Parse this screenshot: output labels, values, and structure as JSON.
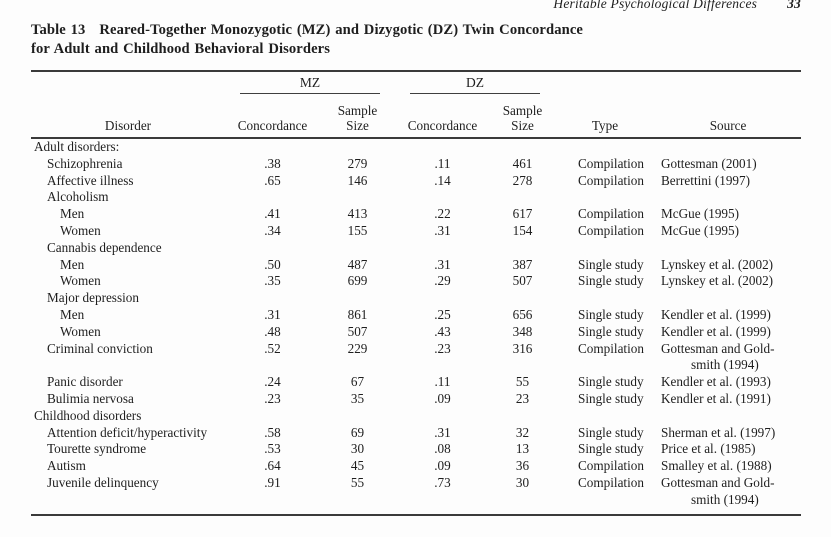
{
  "page": {
    "running_head": "Heritable Psychological Differences",
    "page_number": "33"
  },
  "table": {
    "label": "Table 13",
    "title_line1": "Reared-Together Monozygotic (MZ) and Dizygotic (DZ) Twin Concordance",
    "title_line2": "for Adult and Childhood Behavioral Disorders",
    "groups": {
      "mz": "MZ",
      "dz": "DZ"
    },
    "columns": {
      "disorder": "Disorder",
      "mz_concordance": "Concordance",
      "sample_line1": "Sample",
      "sample_line2": "Size",
      "dz_concordance": "Concordance",
      "type": "Type",
      "source": "Source"
    },
    "rows": [
      {
        "indent": 0,
        "disorder": "Adult disorders:",
        "mz_concordance": "",
        "mz_sample_size": "",
        "dz_concordance": "",
        "dz_sample_size": "",
        "type": "",
        "source": ""
      },
      {
        "indent": 1,
        "disorder": "Schizophrenia",
        "mz_concordance": ".38",
        "mz_sample_size": "279",
        "dz_concordance": ".11",
        "dz_sample_size": "461",
        "type": "Compilation",
        "source": "Gottesman (2001)"
      },
      {
        "indent": 1,
        "disorder": "Affective illness",
        "mz_concordance": ".65",
        "mz_sample_size": "146",
        "dz_concordance": ".14",
        "dz_sample_size": "278",
        "type": "Compilation",
        "source": "Berrettini (1997)"
      },
      {
        "indent": 1,
        "disorder": "Alcoholism",
        "mz_concordance": "",
        "mz_sample_size": "",
        "dz_concordance": "",
        "dz_sample_size": "",
        "type": "",
        "source": ""
      },
      {
        "indent": 2,
        "disorder": "Men",
        "mz_concordance": ".41",
        "mz_sample_size": "413",
        "dz_concordance": ".22",
        "dz_sample_size": "617",
        "type": "Compilation",
        "source": "McGue (1995)"
      },
      {
        "indent": 2,
        "disorder": "Women",
        "mz_concordance": ".34",
        "mz_sample_size": "155",
        "dz_concordance": ".31",
        "dz_sample_size": "154",
        "type": "Compilation",
        "source": "McGue (1995)"
      },
      {
        "indent": 1,
        "disorder": "Cannabis dependence",
        "mz_concordance": "",
        "mz_sample_size": "",
        "dz_concordance": "",
        "dz_sample_size": "",
        "type": "",
        "source": ""
      },
      {
        "indent": 2,
        "disorder": "Men",
        "mz_concordance": ".50",
        "mz_sample_size": "487",
        "dz_concordance": ".31",
        "dz_sample_size": "387",
        "type": "Single study",
        "source": "Lynskey et al. (2002)"
      },
      {
        "indent": 2,
        "disorder": "Women",
        "mz_concordance": ".35",
        "mz_sample_size": "699",
        "dz_concordance": ".29",
        "dz_sample_size": "507",
        "type": "Single study",
        "source": "Lynskey et al. (2002)"
      },
      {
        "indent": 1,
        "disorder": "Major depression",
        "mz_concordance": "",
        "mz_sample_size": "",
        "dz_concordance": "",
        "dz_sample_size": "",
        "type": "",
        "source": ""
      },
      {
        "indent": 2,
        "disorder": "Men",
        "mz_concordance": ".31",
        "mz_sample_size": "861",
        "dz_concordance": ".25",
        "dz_sample_size": "656",
        "type": "Single study",
        "source": "Kendler et al. (1999)"
      },
      {
        "indent": 2,
        "disorder": "Women",
        "mz_concordance": ".48",
        "mz_sample_size": "507",
        "dz_concordance": ".43",
        "dz_sample_size": "348",
        "type": "Single study",
        "source": "Kendler et al. (1999)"
      },
      {
        "indent": 1,
        "disorder": "Criminal conviction",
        "mz_concordance": ".52",
        "mz_sample_size": "229",
        "dz_concordance": ".23",
        "dz_sample_size": "316",
        "type": "Compilation",
        "source": "Gottesman and Gold-\nsmith (1994)"
      },
      {
        "indent": 1,
        "disorder": "Panic disorder",
        "mz_concordance": ".24",
        "mz_sample_size": "67",
        "dz_concordance": ".11",
        "dz_sample_size": "55",
        "type": "Single study",
        "source": "Kendler et al. (1993)"
      },
      {
        "indent": 1,
        "disorder": "Bulimia nervosa",
        "mz_concordance": ".23",
        "mz_sample_size": "35",
        "dz_concordance": ".09",
        "dz_sample_size": "23",
        "type": "Single study",
        "source": "Kendler et al. (1991)"
      },
      {
        "indent": 0,
        "disorder": "Childhood disorders",
        "mz_concordance": "",
        "mz_sample_size": "",
        "dz_concordance": "",
        "dz_sample_size": "",
        "type": "",
        "source": ""
      },
      {
        "indent": 1,
        "disorder": "Attention deficit/hyperactivity",
        "mz_concordance": ".58",
        "mz_sample_size": "69",
        "dz_concordance": ".31",
        "dz_sample_size": "32",
        "type": "Single study",
        "source": "Sherman et al. (1997)"
      },
      {
        "indent": 1,
        "disorder": "Tourette syndrome",
        "mz_concordance": ".53",
        "mz_sample_size": "30",
        "dz_concordance": ".08",
        "dz_sample_size": "13",
        "type": "Single study",
        "source": "Price et al. (1985)"
      },
      {
        "indent": 1,
        "disorder": "Autism",
        "mz_concordance": ".64",
        "mz_sample_size": "45",
        "dz_concordance": ".09",
        "dz_sample_size": "36",
        "type": "Compilation",
        "source": "Smalley et al. (1988)"
      },
      {
        "indent": 1,
        "disorder": "Juvenile delinquency",
        "mz_concordance": ".91",
        "mz_sample_size": "55",
        "dz_concordance": ".73",
        "dz_sample_size": "30",
        "type": "Compilation",
        "source": "Gottesman and Gold-\nsmith (1994)"
      }
    ]
  }
}
